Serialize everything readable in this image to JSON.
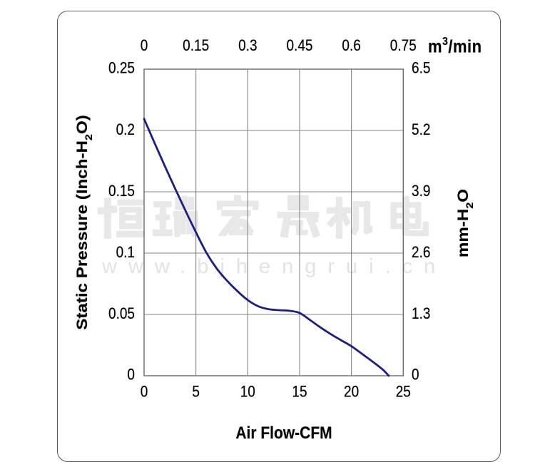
{
  "chart_data": {
    "type": "line",
    "series": [
      {
        "name": "static-pressure-vs-airflow",
        "color": "#1d1d87",
        "points": [
          [
            0,
            0.2095
          ],
          [
            1,
            0.19
          ],
          [
            2,
            0.171
          ],
          [
            3,
            0.1525
          ],
          [
            4,
            0.1345
          ],
          [
            5,
            0.117
          ],
          [
            6,
            0.1005
          ],
          [
            7,
            0.0875
          ],
          [
            8,
            0.0775
          ],
          [
            9,
            0.069
          ],
          [
            10,
            0.0617
          ],
          [
            11,
            0.0567
          ],
          [
            12,
            0.0543
          ],
          [
            13,
            0.0535
          ],
          [
            14,
            0.053
          ],
          [
            15,
            0.0512
          ],
          [
            16,
            0.0455
          ],
          [
            17,
            0.0395
          ],
          [
            18,
            0.034
          ],
          [
            19,
            0.029
          ],
          [
            20,
            0.0241
          ],
          [
            21,
            0.018
          ],
          [
            22,
            0.0118
          ],
          [
            23,
            0.0052
          ],
          [
            23.6,
            0.0
          ]
        ]
      }
    ],
    "axes": {
      "bottom": {
        "title": "Air Flow-CFM",
        "ticks": [
          "0",
          "5",
          "10",
          "15",
          "20",
          "25"
        ],
        "range": [
          0,
          25
        ]
      },
      "top": {
        "title": "m3/min",
        "title_parts": {
          "prefix": "m",
          "sup": "3",
          "suffix": "/min"
        },
        "ticks": [
          "0",
          "0.15",
          "0.3",
          "0.45",
          "0.6",
          "0.75"
        ],
        "range": [
          0,
          0.75
        ]
      },
      "left": {
        "title": "Static Pressure (Inch-H2O)",
        "title_parts": {
          "prefix": "Static Pressure (Inch-H",
          "sub": "2",
          "suffix": "O)"
        },
        "ticks": [
          "0.25",
          "0.2",
          "0.15",
          "0.1",
          "0.05",
          "0"
        ],
        "range": [
          0.25,
          0
        ]
      },
      "right": {
        "title": "mm-H2O",
        "title_parts": {
          "prefix": "mm-H",
          "sub": "2",
          "suffix": "O"
        },
        "ticks": [
          "6.5",
          "5.2",
          "3.9",
          "2.6",
          "1.3",
          "0"
        ],
        "range": [
          6.5,
          0
        ]
      }
    },
    "grid": {
      "shown": true,
      "color": "#848484"
    },
    "plot_border_color": "#6a6a6a",
    "outer_border_color": "#58585a"
  },
  "watermark": {
    "text_cjk": "恒瑞宏晟机电",
    "text_url": "www.bjhengrui.cn",
    "color": "#e8e8e8"
  }
}
